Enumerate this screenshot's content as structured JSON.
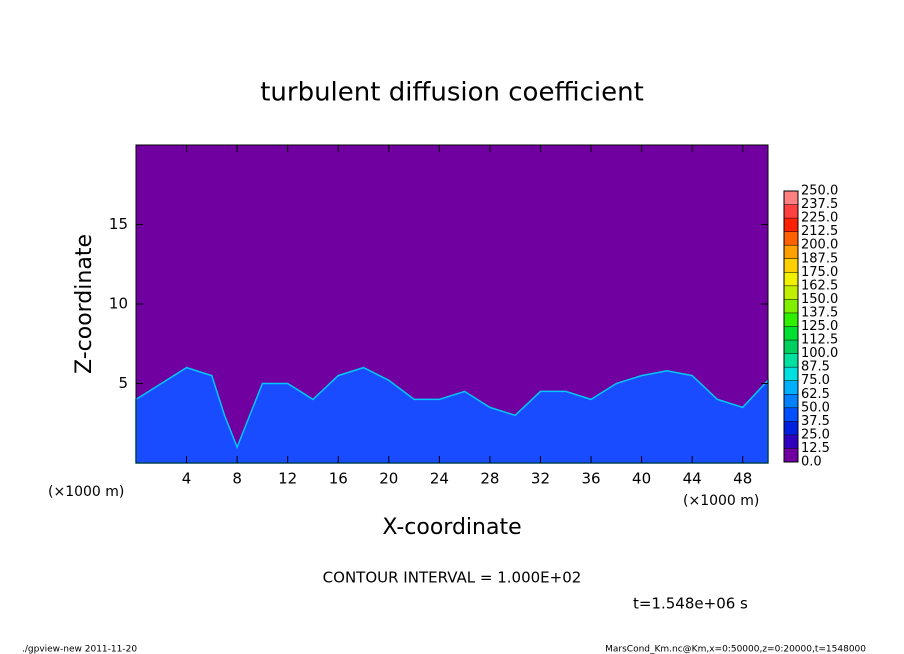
{
  "chart_data": {
    "type": "contour",
    "title": "turbulent diffusion coefficient",
    "x_label": "X-coordinate",
    "y_label": "Z-coordinate",
    "x_unit_left": "(×1000 m)",
    "x_unit_right": "(×1000 m)",
    "xlim": [
      0,
      50
    ],
    "ylim": [
      0,
      20
    ],
    "xticks": [
      4,
      8,
      12,
      16,
      20,
      24,
      28,
      32,
      36,
      40,
      44,
      48
    ],
    "yticks": [
      5,
      10,
      15
    ],
    "background_color": "#7000a0",
    "color": "#1a4cff",
    "x": [
      0,
      2,
      4,
      6,
      7,
      8,
      10,
      12,
      14,
      16,
      18,
      20,
      22,
      24,
      26,
      28,
      30,
      32,
      34,
      36,
      38,
      40,
      42,
      44,
      46,
      48,
      50
    ],
    "values": [
      4,
      5,
      6,
      5.5,
      3,
      1,
      5,
      5,
      4,
      5.5,
      6,
      5.2,
      4,
      4,
      4.5,
      3.5,
      3,
      4.5,
      4.5,
      4,
      5,
      5.5,
      5.8,
      5.5,
      4,
      3.5,
      5.2
    ],
    "levels": [
      {
        "value": 0,
        "label": "0.0"
      },
      12.5,
      25,
      37.5,
      50,
      62.5,
      75,
      87.5,
      100,
      112.5,
      125,
      137.5,
      150,
      162.5,
      175,
      187.5,
      200,
      212.5,
      225,
      237.5,
      {
        "value": 250,
        "label": "250.0"
      }
    ],
    "level_labels": [
      "0.0",
      "12.5",
      "25.0",
      "37.5",
      "50.0",
      "62.5",
      "75.0",
      "87.5",
      "100.0",
      "112.5",
      "125.0",
      "137.5",
      "150.0",
      "162.5",
      "175.0",
      "187.5",
      "200.0",
      "212.5",
      "225.0",
      "237.5",
      "250.0"
    ],
    "level_colors": [
      "#7000a0",
      "#3000c0",
      "#0020e0",
      "#0050ff",
      "#0080ff",
      "#00b0ff",
      "#00e0e0",
      "#00e0a0",
      "#00d060",
      "#00e030",
      "#30f000",
      "#80f000",
      "#c0f000",
      "#f0f000",
      "#ffd000",
      "#ffa000",
      "#ff6000",
      "#ff2000",
      "#ff4040",
      "#ff8080"
    ],
    "contour_interval": "CONTOUR INTERVAL = 1.000E+02",
    "time": "t=1.548e+06 s",
    "footer_left": "./gpview-new  2011-11-20",
    "footer_right": "MarsCond_Km.nc@Km,x=0:50000,z=0:20000,t=1548000"
  }
}
